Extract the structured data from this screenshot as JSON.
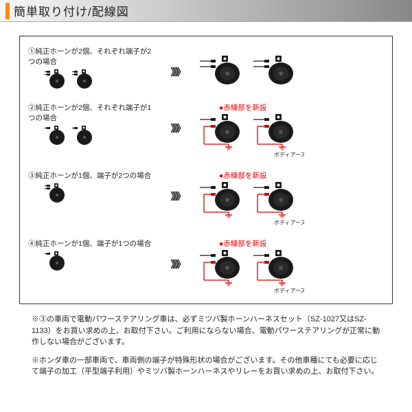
{
  "header": {
    "title": "簡単取り付け/配線図"
  },
  "rows": [
    {
      "caption": "①純正ホーンが2個、それぞれ端子が2つの場合",
      "left_horns": 2,
      "left_terminals": 2,
      "right_red": false,
      "red_label": ""
    },
    {
      "caption": "②純正ホーンが2個、それぞれ端子が1つの場合",
      "left_horns": 2,
      "left_terminals": 1,
      "right_red": true,
      "red_label": "●赤線部を新設"
    },
    {
      "caption": "③純正ホーンが1個、端子が2つの場合",
      "left_horns": 1,
      "left_terminals": 2,
      "right_red": true,
      "red_label": "●赤線部を新設"
    },
    {
      "caption": "④純正ホーンが1個、端子が1つの場合",
      "left_horns": 1,
      "left_terminals": 1,
      "right_red": true,
      "red_label": "●赤線部を新設"
    }
  ],
  "arrow_glyph": "》》》",
  "body_earth_label": "ボディアース",
  "notes": [
    "※③の車両で電動パワーステアリング車は、必ずミツバ製ホーンハーネスセット（SZ-1027又はSZ-1133）をお買い求めの上、お取付下さい。ご利用にならない場合、電動パワーステアリングが正常に動作しない場合がございます。",
    "※ホンダ車の一部車両で、車両側の端子が特殊形状の場合がございます。その他車種にても必要に応じて端子の加工（平型端子利用）やミツバ製ホーンハーネスやリレーをお買い求めの上、お取付下さい。"
  ],
  "colors": {
    "accent": "#ff8c00",
    "red": "#d00000",
    "black": "#1a1a1a",
    "gray": "#666",
    "bg": "#ffffff",
    "border": "#333"
  }
}
